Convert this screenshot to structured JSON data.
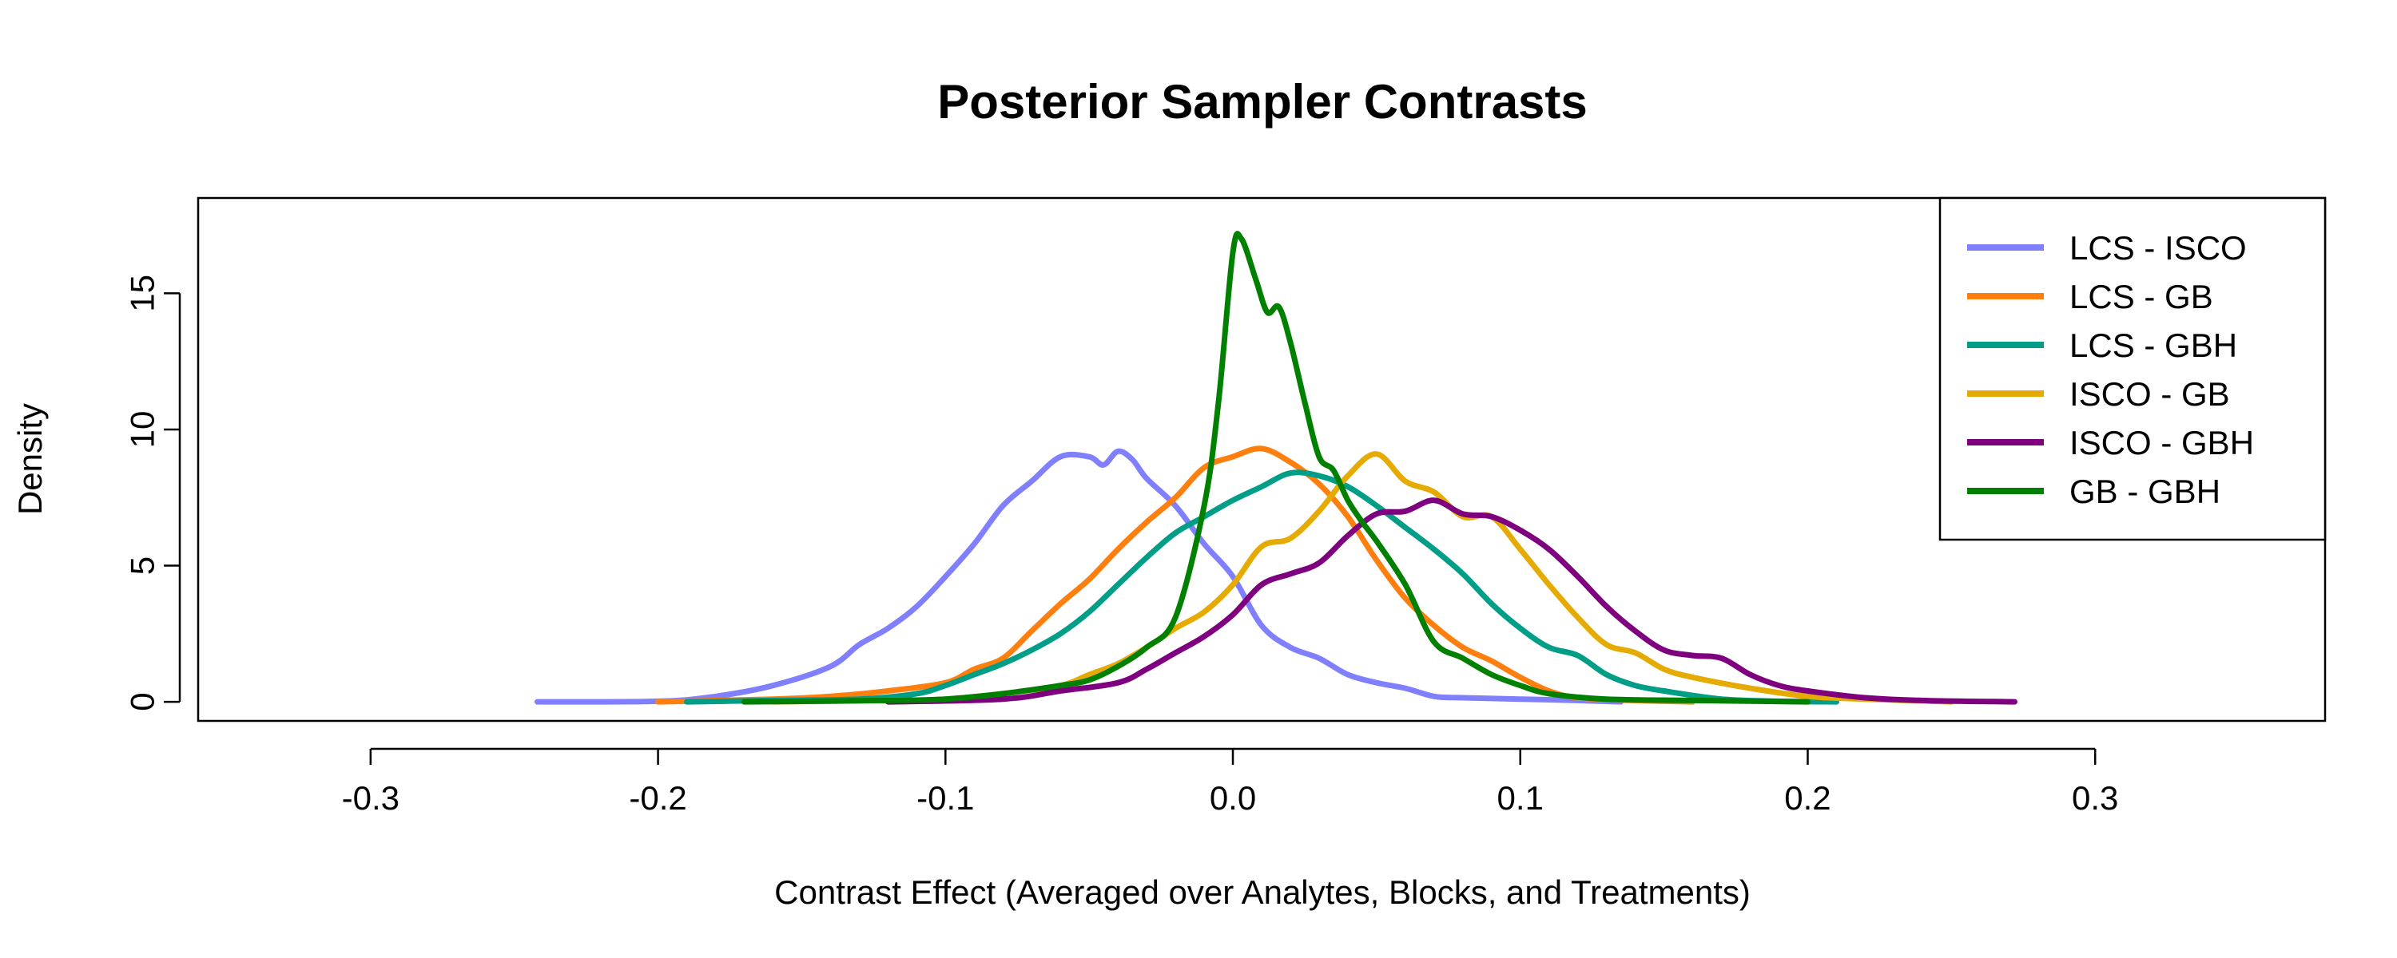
{
  "chart_data": {
    "type": "line",
    "title": "Posterior Sampler Contrasts",
    "xlabel": "Contrast Effect (Averaged over Analytes, Blocks, and Treatments)",
    "ylabel": "Density",
    "xlim": [
      -0.36,
      0.38
    ],
    "ylim": [
      -0.7,
      18.5
    ],
    "xticks": [
      -0.3,
      -0.2,
      -0.1,
      0.0,
      0.1,
      0.2,
      0.3
    ],
    "xtick_labels": [
      "-0.3",
      "-0.2",
      "-0.1",
      "0.0",
      "0.1",
      "0.2",
      "0.3"
    ],
    "yticks": [
      0,
      5,
      10,
      15
    ],
    "ytick_labels": [
      "0",
      "5",
      "10",
      "15"
    ],
    "grid": false,
    "legend_position": "top-right",
    "series": [
      {
        "name": "LCS - ISCO",
        "color": "#8080ff",
        "points": [
          [
            -0.242,
            0
          ],
          [
            -0.2,
            0.02
          ],
          [
            -0.18,
            0.2
          ],
          [
            -0.16,
            0.6
          ],
          [
            -0.14,
            1.3
          ],
          [
            -0.13,
            2.1
          ],
          [
            -0.12,
            2.7
          ],
          [
            -0.11,
            3.5
          ],
          [
            -0.1,
            4.6
          ],
          [
            -0.09,
            5.8
          ],
          [
            -0.08,
            7.2
          ],
          [
            -0.07,
            8.1
          ],
          [
            -0.06,
            9.0
          ],
          [
            -0.05,
            9.0
          ],
          [
            -0.045,
            8.7
          ],
          [
            -0.04,
            9.2
          ],
          [
            -0.035,
            8.9
          ],
          [
            -0.03,
            8.2
          ],
          [
            -0.02,
            7.2
          ],
          [
            -0.01,
            5.8
          ],
          [
            0.0,
            4.6
          ],
          [
            0.01,
            2.8
          ],
          [
            0.02,
            2.0
          ],
          [
            0.03,
            1.6
          ],
          [
            0.04,
            1.0
          ],
          [
            0.05,
            0.7
          ],
          [
            0.06,
            0.5
          ],
          [
            0.07,
            0.2
          ],
          [
            0.08,
            0.15
          ],
          [
            0.1,
            0.1
          ],
          [
            0.12,
            0.05
          ],
          [
            0.135,
            0.0
          ]
        ]
      },
      {
        "name": "LCS - GB",
        "color": "#ff7f0e",
        "points": [
          [
            -0.2,
            0
          ],
          [
            -0.16,
            0.1
          ],
          [
            -0.14,
            0.2
          ],
          [
            -0.12,
            0.4
          ],
          [
            -0.1,
            0.7
          ],
          [
            -0.09,
            1.2
          ],
          [
            -0.08,
            1.6
          ],
          [
            -0.07,
            2.6
          ],
          [
            -0.06,
            3.6
          ],
          [
            -0.05,
            4.5
          ],
          [
            -0.04,
            5.6
          ],
          [
            -0.03,
            6.6
          ],
          [
            -0.02,
            7.5
          ],
          [
            -0.01,
            8.6
          ],
          [
            0.0,
            9.0
          ],
          [
            0.01,
            9.3
          ],
          [
            0.02,
            8.8
          ],
          [
            0.03,
            8.0
          ],
          [
            0.04,
            6.8
          ],
          [
            0.05,
            5.2
          ],
          [
            0.06,
            3.8
          ],
          [
            0.07,
            2.8
          ],
          [
            0.08,
            2.0
          ],
          [
            0.09,
            1.5
          ],
          [
            0.1,
            0.9
          ],
          [
            0.11,
            0.4
          ],
          [
            0.12,
            0.15
          ],
          [
            0.14,
            0.05
          ],
          [
            0.16,
            0.0
          ]
        ]
      },
      {
        "name": "LCS - GBH",
        "color": "#009e87",
        "points": [
          [
            -0.19,
            0
          ],
          [
            -0.16,
            0.05
          ],
          [
            -0.13,
            0.1
          ],
          [
            -0.11,
            0.3
          ],
          [
            -0.1,
            0.6
          ],
          [
            -0.09,
            1.0
          ],
          [
            -0.08,
            1.4
          ],
          [
            -0.07,
            1.9
          ],
          [
            -0.06,
            2.5
          ],
          [
            -0.05,
            3.3
          ],
          [
            -0.04,
            4.3
          ],
          [
            -0.03,
            5.3
          ],
          [
            -0.02,
            6.2
          ],
          [
            -0.01,
            6.8
          ],
          [
            0.0,
            7.4
          ],
          [
            0.01,
            7.9
          ],
          [
            0.02,
            8.4
          ],
          [
            0.03,
            8.3
          ],
          [
            0.04,
            7.9
          ],
          [
            0.05,
            7.2
          ],
          [
            0.06,
            6.4
          ],
          [
            0.07,
            5.6
          ],
          [
            0.08,
            4.7
          ],
          [
            0.09,
            3.6
          ],
          [
            0.1,
            2.7
          ],
          [
            0.11,
            2.0
          ],
          [
            0.12,
            1.7
          ],
          [
            0.13,
            1.0
          ],
          [
            0.14,
            0.6
          ],
          [
            0.15,
            0.4
          ],
          [
            0.17,
            0.1
          ],
          [
            0.19,
            0.02
          ],
          [
            0.21,
            0.0
          ]
        ]
      },
      {
        "name": "ISCO - GB",
        "color": "#e6ab02",
        "points": [
          [
            -0.16,
            0
          ],
          [
            -0.12,
            0.05
          ],
          [
            -0.1,
            0.1
          ],
          [
            -0.08,
            0.3
          ],
          [
            -0.06,
            0.6
          ],
          [
            -0.05,
            1.0
          ],
          [
            -0.04,
            1.4
          ],
          [
            -0.03,
            2.0
          ],
          [
            -0.02,
            2.7
          ],
          [
            -0.01,
            3.3
          ],
          [
            0.0,
            4.3
          ],
          [
            0.01,
            5.7
          ],
          [
            0.02,
            6.0
          ],
          [
            0.03,
            7.0
          ],
          [
            0.04,
            8.3
          ],
          [
            0.05,
            9.1
          ],
          [
            0.06,
            8.1
          ],
          [
            0.07,
            7.7
          ],
          [
            0.08,
            6.8
          ],
          [
            0.09,
            6.8
          ],
          [
            0.1,
            5.6
          ],
          [
            0.11,
            4.3
          ],
          [
            0.12,
            3.1
          ],
          [
            0.13,
            2.1
          ],
          [
            0.14,
            1.8
          ],
          [
            0.15,
            1.2
          ],
          [
            0.16,
            0.9
          ],
          [
            0.18,
            0.5
          ],
          [
            0.2,
            0.2
          ],
          [
            0.22,
            0.1
          ],
          [
            0.25,
            0.0
          ]
        ]
      },
      {
        "name": "ISCO - GBH",
        "color": "#7f007f",
        "points": [
          [
            -0.12,
            0
          ],
          [
            -0.08,
            0.1
          ],
          [
            -0.06,
            0.4
          ],
          [
            -0.04,
            0.7
          ],
          [
            -0.03,
            1.2
          ],
          [
            -0.02,
            1.8
          ],
          [
            -0.01,
            2.4
          ],
          [
            0.0,
            3.2
          ],
          [
            0.01,
            4.3
          ],
          [
            0.02,
            4.7
          ],
          [
            0.03,
            5.1
          ],
          [
            0.04,
            6.1
          ],
          [
            0.05,
            6.9
          ],
          [
            0.06,
            7.0
          ],
          [
            0.07,
            7.4
          ],
          [
            0.08,
            6.9
          ],
          [
            0.09,
            6.8
          ],
          [
            0.1,
            6.3
          ],
          [
            0.11,
            5.6
          ],
          [
            0.12,
            4.6
          ],
          [
            0.13,
            3.5
          ],
          [
            0.14,
            2.6
          ],
          [
            0.15,
            1.9
          ],
          [
            0.16,
            1.7
          ],
          [
            0.17,
            1.6
          ],
          [
            0.18,
            1.0
          ],
          [
            0.19,
            0.6
          ],
          [
            0.2,
            0.4
          ],
          [
            0.22,
            0.15
          ],
          [
            0.24,
            0.05
          ],
          [
            0.272,
            0.0
          ]
        ]
      },
      {
        "name": "GB - GBH",
        "color": "#008000",
        "points": [
          [
            -0.17,
            0
          ],
          [
            -0.12,
            0.05
          ],
          [
            -0.1,
            0.1
          ],
          [
            -0.08,
            0.3
          ],
          [
            -0.06,
            0.6
          ],
          [
            -0.05,
            0.8
          ],
          [
            -0.04,
            1.3
          ],
          [
            -0.03,
            2.0
          ],
          [
            -0.02,
            3.1
          ],
          [
            -0.01,
            7.2
          ],
          [
            -0.005,
            11.0
          ],
          [
            0.0,
            16.5
          ],
          [
            0.003,
            17.0
          ],
          [
            0.008,
            15.5
          ],
          [
            0.012,
            14.3
          ],
          [
            0.016,
            14.5
          ],
          [
            0.02,
            13.2
          ],
          [
            0.025,
            11.0
          ],
          [
            0.03,
            9.0
          ],
          [
            0.035,
            8.5
          ],
          [
            0.04,
            7.4
          ],
          [
            0.045,
            6.6
          ],
          [
            0.05,
            5.9
          ],
          [
            0.06,
            4.3
          ],
          [
            0.07,
            2.2
          ],
          [
            0.08,
            1.6
          ],
          [
            0.09,
            1.0
          ],
          [
            0.1,
            0.6
          ],
          [
            0.11,
            0.3
          ],
          [
            0.13,
            0.1
          ],
          [
            0.16,
            0.05
          ],
          [
            0.2,
            0.0
          ]
        ]
      }
    ]
  }
}
